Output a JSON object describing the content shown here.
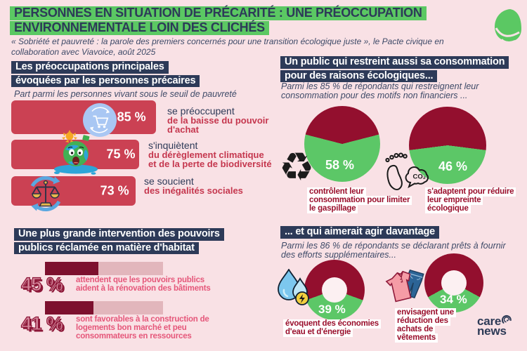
{
  "header": {
    "title_line1": "PERSONNES EN SITUATION DE PRÉCARITÉ : UNE PRÉOCCUPATION",
    "title_line2": "ENVIRONNEMENTALE LOIN DES CLICHÉS",
    "subtitle": "« Sobriété et pauvreté : la parole des premiers concernés pour une transition écologique juste », le Pacte civique en collaboration avec Viavoice, août 2025"
  },
  "brand": {
    "footer_line1": "care",
    "footer_line2": "news"
  },
  "colors": {
    "background": "#f9e1e5",
    "green": "#5bc863",
    "navy": "#2d3a58",
    "bar_red": "#cb4153",
    "pie_maroon": "#930f2e",
    "pie_green": "#5cc767",
    "fill_maroon": "#7d102e",
    "track_pink": "#e2b6bc",
    "caption_pink": "#e5577a"
  },
  "chart_data": [
    {
      "id": "concerns",
      "type": "bar",
      "title_lines": [
        "Les préoccupations principales",
        "évoquées par les personnes précaires"
      ],
      "subtitle": "Part parmi les personnes vivant sous le seuil de pauvreté",
      "unit": "%",
      "xlim": [
        0,
        100
      ],
      "items": [
        {
          "value": 85,
          "display": "85 %",
          "icon": "shopping-cart",
          "label_plain": "se préoccupent",
          "label_bold": "de la baisse du pouvoir d'achat"
        },
        {
          "value": 75,
          "display": "75 %",
          "icon": "melting-earth",
          "label_plain": "s'inquiètent",
          "label_bold": "du dérèglement climatique et de la perte de biodiversité"
        },
        {
          "value": 73,
          "display": "73 %",
          "icon": "scales-recycling",
          "label_plain": "se soucient",
          "label_bold": "des inégalités sociales"
        }
      ]
    },
    {
      "id": "consumption",
      "type": "pie",
      "title_lines": [
        "Un public qui restreint aussi sa consommation",
        "pour des raisons écologiques..."
      ],
      "subtitle": "Parmi les 85 % de répondants qui restreignent leur consommation pour des motifs non financiers ...",
      "items": [
        {
          "value": 58,
          "display": "58 %",
          "icon": "recycle",
          "caption_lines": [
            "contrôlent leur",
            "consommation pour limiter",
            "le gaspillage"
          ]
        },
        {
          "value": 46,
          "display": "46 %",
          "icon": "carbon-footprint",
          "caption_lines": [
            "s'adaptent pour réduire",
            "leur empreinte",
            "écologique"
          ]
        }
      ]
    },
    {
      "id": "housing",
      "type": "bar",
      "title_lines": [
        "Une plus grande intervention des pouvoirs",
        "publics réclamée en matière d'habitat"
      ],
      "unit": "%",
      "xlim": [
        0,
        100
      ],
      "items": [
        {
          "value": 45,
          "display": "45 %",
          "caption_lines": [
            "attendent que les pouvoirs publics",
            "aident à la rénovation des bâtiments"
          ]
        },
        {
          "value": 41,
          "display": "41 %",
          "caption_lines": [
            "sont favorables à la construction de",
            "logements bon marché et peu",
            "consommateurs en ressources"
          ]
        }
      ]
    },
    {
      "id": "efforts",
      "type": "donut",
      "title_lines": [
        "... et qui aimerait agir davantage"
      ],
      "subtitle": "Parmi les 86 % de répondants se déclarant prêts à fournir des efforts supplémentaires...",
      "items": [
        {
          "value": 39,
          "display": "39 %",
          "icon": "water-energy",
          "caption_lines": [
            "évoquent des économies",
            "d'eau et d'énergie"
          ]
        },
        {
          "value": 34,
          "display": "34 %",
          "icon": "clothing",
          "caption_lines": [
            "envisagent une",
            "réduction des",
            "achats de",
            "vêtements"
          ]
        }
      ]
    }
  ]
}
